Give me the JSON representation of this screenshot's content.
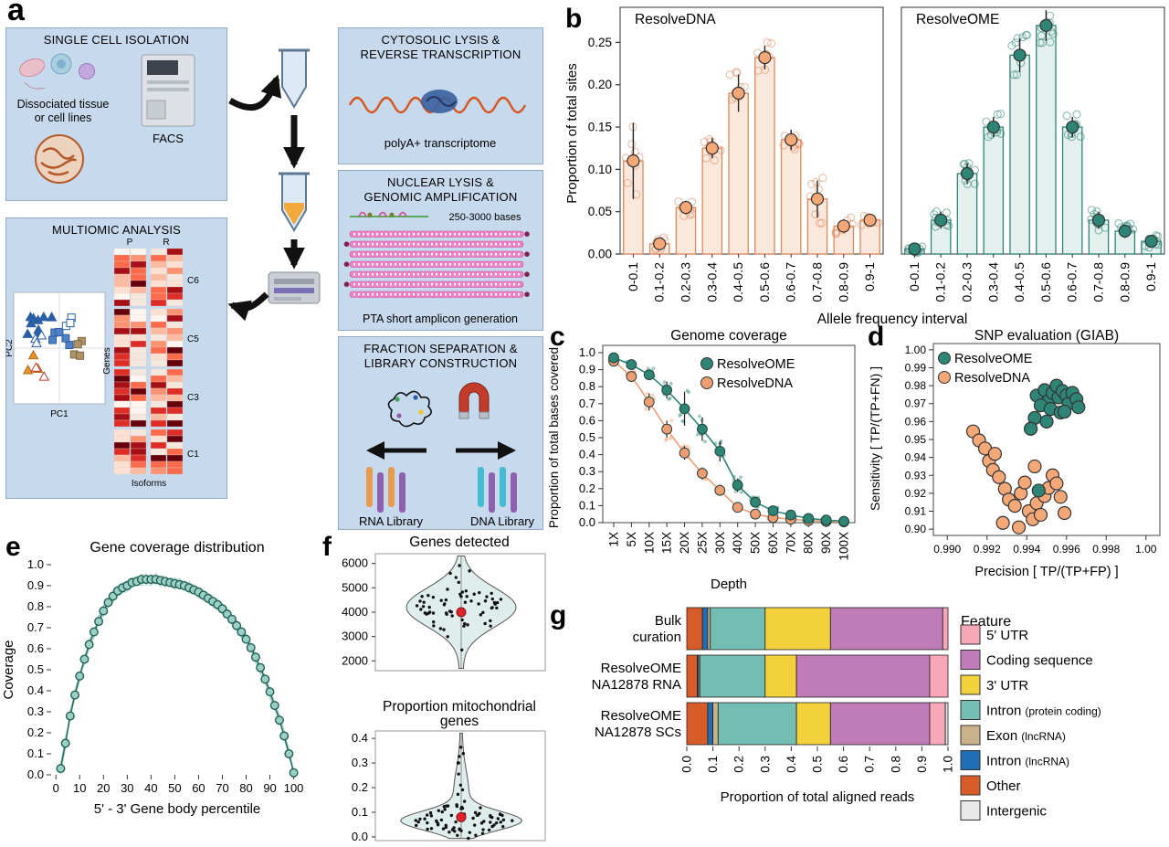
{
  "panel_a": {
    "label": "a",
    "single_cell": {
      "title": "SINGLE CELL ISOLATION",
      "caption_line1": "Dissociated tissue",
      "caption_line2": "or cell lines",
      "facs": "FACS"
    },
    "multiomic": {
      "title": "MULTIOMIC ANALYSIS",
      "pc1": "PC1",
      "pc2": "PC2",
      "genes": "Genes",
      "isoforms": "Isoforms",
      "p": "P",
      "r": "R",
      "clusters": [
        "C6",
        "C5",
        "C3",
        "C1"
      ]
    },
    "cytosolic": {
      "title1": "CYTOSOLIC LYSIS &",
      "title2": "REVERSE TRANSCRIPTION",
      "caption": "polyA+ transcriptome"
    },
    "nuclear": {
      "title1": "NUCLEAR LYSIS &",
      "title2": "GENOMIC AMPLIFICATION",
      "bases": "250-3000 bases",
      "caption": "PTA short amplicon generation"
    },
    "fraction": {
      "title1": "FRACTION SEPARATION &",
      "title2": "LIBRARY CONSTRUCTION",
      "rna": "RNA Library",
      "dna": "DNA Library"
    }
  },
  "chart_data": [
    {
      "id": "b",
      "panel_label": "b",
      "type": "bar",
      "ylabel": "Proportion of total sites",
      "xlabel": "Allele frequency interval",
      "categories": [
        "0-0.1",
        "0.1-0.2",
        "0.2-0.3",
        "0.3-0.4",
        "0.4-0.5",
        "0.5-0.6",
        "0.6-0.7",
        "0.7-0.8",
        "0.8-0.9",
        "0.9-1"
      ],
      "yticks": [
        0,
        0.05,
        0.1,
        0.15,
        0.2,
        0.25
      ],
      "ylim": [
        0,
        0.285
      ],
      "facets": [
        {
          "title": "ResolveDNA",
          "color": "#E2885B",
          "fill": "#FBE8DC",
          "dot": "#F5A877",
          "values": [
            0.11,
            0.012,
            0.055,
            0.125,
            0.19,
            0.232,
            0.135,
            0.065,
            0.033,
            0.04
          ],
          "errors": [
            0.045,
            0.006,
            0.008,
            0.012,
            0.022,
            0.014,
            0.012,
            0.022,
            0.008,
            0.006
          ]
        },
        {
          "title": "ResolveOME",
          "color": "#2E8576",
          "fill": "#E3F0ED",
          "dot": "#2E8576",
          "values": [
            0.006,
            0.04,
            0.095,
            0.15,
            0.235,
            0.27,
            0.15,
            0.04,
            0.027,
            0.015
          ],
          "errors": [
            0.004,
            0.01,
            0.012,
            0.012,
            0.02,
            0.018,
            0.012,
            0.01,
            0.008,
            0.006
          ]
        }
      ]
    },
    {
      "id": "c",
      "panel_label": "c",
      "type": "line",
      "title": "Genome coverage",
      "ylabel": "Proportion of total bases covered",
      "xlabel": "Depth",
      "categories": [
        "1X",
        "5X",
        "10X",
        "15X",
        "20X",
        "25X",
        "30X",
        "40X",
        "50X",
        "60X",
        "70X",
        "80X",
        "90X",
        "100X"
      ],
      "yticks": [
        0,
        0.1,
        0.2,
        0.3,
        0.4,
        0.5,
        0.6,
        0.7,
        0.8,
        0.9,
        1.0
      ],
      "series": [
        {
          "name": "ResolveOME",
          "color": "#2E8576",
          "values": [
            0.97,
            0.93,
            0.87,
            0.78,
            0.67,
            0.55,
            0.42,
            0.22,
            0.12,
            0.07,
            0.045,
            0.025,
            0.015,
            0.008
          ],
          "errors": [
            0.01,
            0.015,
            0.03,
            0.05,
            0.1,
            0.07,
            0.06,
            0.04,
            0.025,
            0.015,
            0.01,
            0.008,
            0.005,
            0.004
          ]
        },
        {
          "name": "ResolveDNA",
          "color": "#EF9D72",
          "values": [
            0.95,
            0.86,
            0.71,
            0.55,
            0.41,
            0.29,
            0.19,
            0.09,
            0.05,
            0.03,
            0.02,
            0.012,
            0.007,
            0.004
          ],
          "errors": [
            0.015,
            0.03,
            0.05,
            0.05,
            0.04,
            0.035,
            0.03,
            0.02,
            0.012,
            0.008,
            0.006,
            0.005,
            0.003,
            0.002
          ]
        }
      ]
    },
    {
      "id": "d",
      "panel_label": "d",
      "type": "scatter",
      "title": "SNP evaluation (GIAB)",
      "xlabel": "Precision [ TP/(TP+FP) ]",
      "ylabel": "Sensitivity [ TP/(TP+FN) ]",
      "xticks": [
        0.99,
        0.992,
        0.994,
        0.996,
        0.998,
        1.0
      ],
      "yticks": [
        0.9,
        0.91,
        0.92,
        0.93,
        0.94,
        0.95,
        0.96,
        0.97,
        0.98,
        0.99,
        1.0
      ],
      "xlim": [
        0.9893,
        1.0007
      ],
      "ylim": [
        0.8965,
        1.0035
      ],
      "series": [
        {
          "name": "ResolveOME",
          "color": "#2E8576",
          "points": [
            [
              0.9945,
              0.9745
            ],
            [
              0.9949,
              0.9775
            ],
            [
              0.9951,
              0.9715
            ],
            [
              0.9953,
              0.976
            ],
            [
              0.9955,
              0.98
            ],
            [
              0.9956,
              0.9735
            ],
            [
              0.9958,
              0.977
            ],
            [
              0.996,
              0.9745
            ],
            [
              0.9961,
              0.97
            ],
            [
              0.9963,
              0.976
            ],
            [
              0.9965,
              0.9725
            ],
            [
              0.9947,
              0.969
            ],
            [
              0.9952,
              0.967
            ],
            [
              0.9957,
              0.965
            ],
            [
              0.9944,
              0.962
            ],
            [
              0.995,
              0.96
            ],
            [
              0.9942,
              0.956
            ],
            [
              0.9966,
              0.968
            ],
            [
              0.9959,
              0.9655
            ],
            [
              0.9946,
              0.9215
            ]
          ]
        },
        {
          "name": "ResolveDNA",
          "color": "#F5A877",
          "points": [
            [
              0.9913,
              0.9545
            ],
            [
              0.9916,
              0.9495
            ],
            [
              0.9919,
              0.945
            ],
            [
              0.9921,
              0.938
            ],
            [
              0.9923,
              0.933
            ],
            [
              0.9926,
              0.929
            ],
            [
              0.9929,
              0.9225
            ],
            [
              0.9931,
              0.9165
            ],
            [
              0.9934,
              0.913
            ],
            [
              0.9937,
              0.92
            ],
            [
              0.9939,
              0.926
            ],
            [
              0.9941,
              0.91
            ],
            [
              0.9943,
              0.9055
            ],
            [
              0.9945,
              0.9145
            ],
            [
              0.9947,
              0.908
            ],
            [
              0.9949,
              0.9185
            ],
            [
              0.9951,
              0.923
            ],
            [
              0.9953,
              0.93
            ],
            [
              0.9955,
              0.9255
            ],
            [
              0.9957,
              0.918
            ],
            [
              0.9959,
              0.909
            ],
            [
              0.9928,
              0.9035
            ],
            [
              0.9936,
              0.901
            ],
            [
              0.9924,
              0.942
            ],
            [
              0.9944,
              0.935
            ]
          ]
        }
      ]
    },
    {
      "id": "e",
      "panel_label": "e",
      "type": "line",
      "title": "Gene coverage distribution",
      "xlabel": "5' - 3' Gene body percentile",
      "ylabel": "Coverage",
      "color": "#2E8576",
      "xticks": [
        0,
        10,
        20,
        30,
        40,
        50,
        60,
        70,
        80,
        90,
        100
      ],
      "yticks": [
        0,
        0.1,
        0.2,
        0.3,
        0.4,
        0.5,
        0.6,
        0.7,
        0.8,
        0.9,
        1.0
      ],
      "x": [
        2,
        4,
        6,
        8,
        10,
        12,
        14,
        16,
        18,
        20,
        22,
        24,
        26,
        28,
        30,
        32,
        34,
        36,
        38,
        40,
        42,
        44,
        46,
        48,
        50,
        52,
        54,
        56,
        58,
        60,
        62,
        64,
        66,
        68,
        70,
        72,
        74,
        76,
        78,
        80,
        82,
        84,
        86,
        88,
        90,
        92,
        94,
        96,
        98,
        100
      ],
      "values": [
        0.03,
        0.15,
        0.28,
        0.38,
        0.47,
        0.55,
        0.62,
        0.68,
        0.73,
        0.78,
        0.82,
        0.85,
        0.875,
        0.89,
        0.9,
        0.915,
        0.92,
        0.93,
        0.93,
        0.93,
        0.93,
        0.925,
        0.92,
        0.915,
        0.91,
        0.905,
        0.9,
        0.89,
        0.88,
        0.87,
        0.855,
        0.84,
        0.825,
        0.81,
        0.79,
        0.765,
        0.74,
        0.71,
        0.68,
        0.645,
        0.605,
        0.56,
        0.51,
        0.455,
        0.395,
        0.33,
        0.26,
        0.185,
        0.1,
        0.01
      ]
    },
    {
      "id": "f",
      "panel_label": "f",
      "type": "violin",
      "violins": [
        {
          "title_line1": "Genes detected",
          "title_line2": "",
          "yticks": [
            2000,
            3000,
            4000,
            5000,
            6000
          ],
          "ylim": [
            1600,
            6400
          ],
          "center": 4200,
          "spread": 900,
          "mean_value": 4000,
          "mean_color": "#E02329"
        },
        {
          "title_line1": "Proportion mitochondrial",
          "title_line2": "genes",
          "yticks": [
            0.0,
            0.1,
            0.2,
            0.3,
            0.4
          ],
          "ylim": [
            -0.015,
            0.43
          ],
          "center": 0.065,
          "spread": 0.045,
          "mean_value": 0.08,
          "mean_color": "#E02329"
        }
      ]
    },
    {
      "id": "g",
      "panel_label": "g",
      "type": "stacked-bar",
      "xlabel": "Proportion of total aligned reads",
      "xticks": [
        0,
        0.1,
        0.2,
        0.3,
        0.4,
        0.5,
        0.6,
        0.7,
        0.8,
        0.9,
        1.0
      ],
      "legend_title": "Feature",
      "features": [
        {
          "label": "5' UTR",
          "color": "#F7A8B8"
        },
        {
          "label": "Coding sequence",
          "color": "#BF7CB9"
        },
        {
          "label": "3' UTR",
          "color": "#F2D13D"
        },
        {
          "label": "Intron",
          "suffix": "(protein coding)",
          "color": "#74BDB2"
        },
        {
          "label": "Exon",
          "suffix": "(lncRNA)",
          "color": "#C9B189"
        },
        {
          "label": "Intron",
          "suffix": "(lncRNA)",
          "color": "#1F6EB5"
        },
        {
          "label": "Other",
          "color": "#D85C27"
        },
        {
          "label": "Intergenic",
          "color": "#E8E8E8"
        }
      ],
      "stack_order": [
        6,
        5,
        4,
        3,
        2,
        1,
        0,
        7
      ],
      "rows": [
        {
          "label_line1": "Bulk",
          "label_line2": "curation",
          "values": [
            0.02,
            0.43,
            0.25,
            0.21,
            0.01,
            0.02,
            0.06,
            0.0
          ]
        },
        {
          "label_line1": "ResolveOME",
          "label_line2": "NA12878 RNA",
          "values": [
            0.07,
            0.51,
            0.12,
            0.25,
            0.005,
            0.005,
            0.04,
            0.0
          ]
        },
        {
          "label_line1": "ResolveOME",
          "label_line2": "NA12878 SCs",
          "values": [
            0.06,
            0.38,
            0.13,
            0.3,
            0.02,
            0.02,
            0.08,
            0.01
          ]
        }
      ]
    }
  ]
}
